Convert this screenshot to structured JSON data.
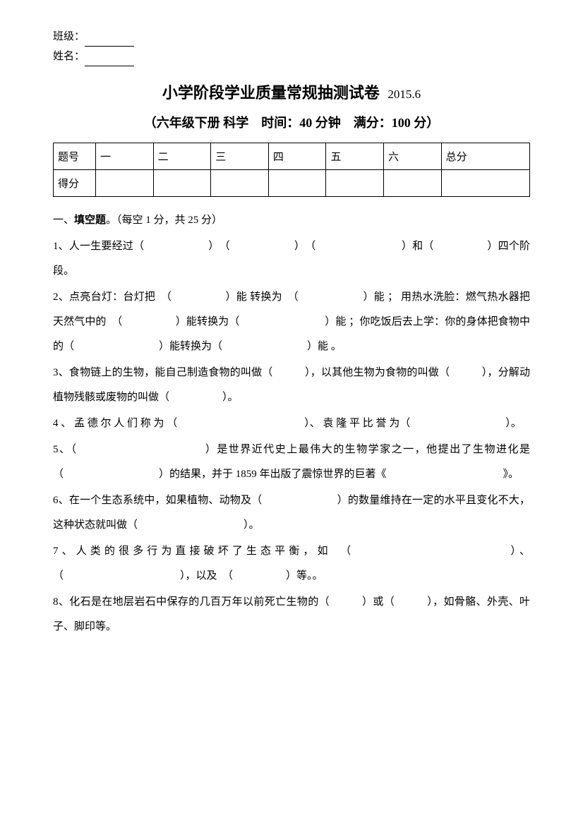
{
  "header": {
    "class_label": "班级：",
    "name_label": "姓名："
  },
  "title": {
    "main": "小学阶段学业质量常规抽测试卷",
    "date": "2015.6"
  },
  "subtitle": "（六年级下册 科学　时间：40 分钟　满分：100 分）",
  "score_table": {
    "row1": [
      "题号",
      "一",
      "二",
      "三",
      "四",
      "五",
      "六",
      "总分"
    ],
    "row2_label": "得分"
  },
  "section1": {
    "heading_prefix": "一、",
    "heading_bold": "填空题",
    "heading_suffix": "。（每空 1 分，共 25 分）"
  },
  "q1": "1、人一生要经过（　　　　　　）　（　　　　　　）　（　　　　　　　　）和（　　　　　）四个阶段。",
  "q2": "2、点亮台灯：台灯把　（　　　　　）能 转换为　（　　　　　　）能 ； 用热水洗脸：燃气热水器把天然气中的　（　　　　　）能转换为（　　　　　　　　）能 ；你吃饭后去上学：你的身体把食物中的（　　　　　　　　）能转换为（　　　　　　　　）能 。",
  "q3": "3、食物链上的生物，能自己制造食物的叫做（　　　），以其他生物为食物的叫做（　　　），分解动植物残骸或废物的叫做（　　　　　）。",
  "q4": "4 、 孟 德 尔 人 们 称 为 （　　　　　　　　　　　　）、 袁 隆 平 比 誉 为（　　　　　　　　　）。",
  "q5": "5、（　　　　　　　　　　　）是世界近代史上最伟大的生物学家之一，他提出了生物进化是　（　　　　　　　　　）的结果，并于 1859 年出版了震惊世界的巨著《　　　　　　　　　　　》。",
  "q6": "6、在一个生态系统中，如果植物、动物及（　　　　　　　）的数量维持在一定的水平且变化不大，这种状态就叫做（　　　　　　　　　　）。",
  "q7": "7、人类的很多行为直接破坏了生态平衡，如　（　　　　　　　　　　　）、（　　　　　　　　　　　），以及　（　　　　　）等。。",
  "q8": "8、化石是在地层岩石中保存的几百万年以前死亡生物的（　　　）或（　　　），如骨骼、外壳、叶子、脚印等。"
}
